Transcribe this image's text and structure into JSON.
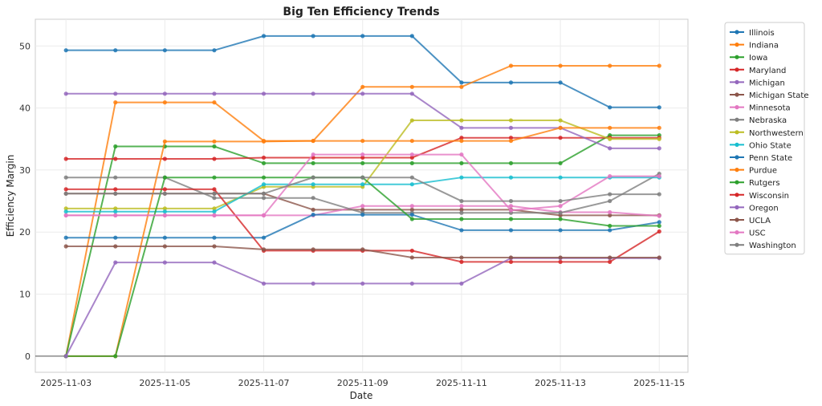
{
  "chart_data": {
    "type": "line",
    "title": "Big Ten Efficiency Trends",
    "xlabel": "Date",
    "ylabel": "Efficiency Margin",
    "ylim": [
      -2.6,
      54.3
    ],
    "yticks": [
      0,
      10,
      20,
      30,
      40,
      50
    ],
    "x": [
      "2025-11-03",
      "2025-11-04",
      "2025-11-05",
      "2025-11-06",
      "2025-11-07",
      "2025-11-08",
      "2025-11-09",
      "2025-11-10",
      "2025-11-11",
      "2025-11-12",
      "2025-11-13",
      "2025-11-14",
      "2025-11-15"
    ],
    "xticks": [
      "2025-11-03",
      "2025-11-05",
      "2025-11-07",
      "2025-11-09",
      "2025-11-11",
      "2025-11-13",
      "2025-11-15"
    ],
    "grid": true,
    "legend_position": "outside-right",
    "series": [
      {
        "name": "Illinois",
        "color": "#1f77b4",
        "values": [
          49.3,
          49.3,
          49.3,
          49.3,
          51.6,
          51.6,
          51.6,
          51.6,
          44.1,
          44.1,
          44.1,
          40.1,
          40.1
        ]
      },
      {
        "name": "Indiana",
        "color": "#ff7f0e",
        "values": [
          0,
          40.9,
          40.9,
          40.9,
          34.7,
          34.7,
          43.4,
          43.4,
          43.4,
          46.8,
          46.8,
          46.8,
          46.8
        ]
      },
      {
        "name": "Iowa",
        "color": "#2ca02c",
        "values": [
          0,
          33.8,
          33.8,
          33.8,
          31.1,
          31.1,
          31.1,
          31.1,
          31.1,
          31.1,
          31.1,
          35.6,
          35.6
        ]
      },
      {
        "name": "Maryland",
        "color": "#d62728",
        "values": [
          31.8,
          31.8,
          31.8,
          31.8,
          32.0,
          32.0,
          32.0,
          32.0,
          35.2,
          35.2,
          35.2,
          35.2,
          35.2
        ]
      },
      {
        "name": "Michigan",
        "color": "#9467bd",
        "values": [
          42.3,
          42.3,
          42.3,
          42.3,
          42.3,
          42.3,
          42.3,
          42.3,
          36.8,
          36.8,
          36.8,
          33.5,
          33.5
        ]
      },
      {
        "name": "Michigan State",
        "color": "#8c564b",
        "values": [
          26.2,
          26.2,
          26.2,
          26.2,
          26.2,
          23.6,
          23.6,
          23.6,
          23.6,
          23.6,
          22.7,
          22.7,
          22.7
        ]
      },
      {
        "name": "Minnesota",
        "color": "#e377c2",
        "values": [
          22.7,
          22.7,
          22.7,
          22.7,
          22.7,
          22.7,
          24.2,
          24.2,
          24.2,
          24.2,
          23.2,
          23.2,
          22.6
        ]
      },
      {
        "name": "Nebraska",
        "color": "#7f7f7f",
        "values": [
          28.8,
          28.8,
          28.8,
          25.5,
          25.5,
          25.5,
          23.1,
          23.1,
          23.1,
          23.1,
          23.1,
          25.0,
          29.4
        ]
      },
      {
        "name": "Northwestern",
        "color": "#bcbd22",
        "values": [
          23.8,
          23.8,
          23.8,
          23.8,
          27.3,
          27.3,
          27.3,
          38.0,
          38.0,
          38.0,
          38.0,
          35.0,
          35.0
        ]
      },
      {
        "name": "Ohio State",
        "color": "#17becf",
        "values": [
          23.3,
          23.3,
          23.3,
          23.3,
          27.7,
          27.7,
          27.7,
          27.7,
          28.8,
          28.8,
          28.8,
          28.8,
          28.8
        ]
      },
      {
        "name": "Penn State",
        "color": "#1f77b4",
        "values": [
          19.1,
          19.1,
          19.1,
          19.1,
          19.1,
          22.8,
          22.8,
          22.8,
          20.3,
          20.3,
          20.3,
          20.3,
          21.6
        ]
      },
      {
        "name": "Purdue",
        "color": "#ff7f0e",
        "values": [
          0,
          0,
          34.6,
          34.6,
          34.6,
          34.7,
          34.7,
          34.7,
          34.7,
          34.7,
          36.8,
          36.8,
          36.8
        ]
      },
      {
        "name": "Rutgers",
        "color": "#2ca02c",
        "values": [
          0,
          0,
          28.8,
          28.8,
          28.8,
          28.8,
          28.8,
          22.1,
          22.1,
          22.1,
          22.1,
          21.0,
          21.0
        ]
      },
      {
        "name": "Wisconsin",
        "color": "#d62728",
        "values": [
          26.9,
          26.9,
          26.9,
          26.9,
          17.0,
          17.0,
          17.0,
          17.0,
          15.2,
          15.2,
          15.2,
          15.2,
          20.1
        ]
      },
      {
        "name": "Oregon",
        "color": "#9467bd",
        "values": [
          0,
          15.1,
          15.1,
          15.1,
          11.7,
          11.7,
          11.7,
          11.7,
          11.7,
          15.8,
          15.8,
          15.8,
          15.8
        ]
      },
      {
        "name": "UCLA",
        "color": "#8c564b",
        "values": [
          17.7,
          17.7,
          17.7,
          17.7,
          17.2,
          17.2,
          17.2,
          15.9,
          15.9,
          15.9,
          15.9,
          15.9,
          15.9
        ]
      },
      {
        "name": "USC",
        "color": "#e377c2",
        "values": [
          22.7,
          22.7,
          22.7,
          22.7,
          22.7,
          32.5,
          32.5,
          32.5,
          32.5,
          23.5,
          24.2,
          29.0,
          29.0
        ]
      },
      {
        "name": "Washington",
        "color": "#7f7f7f",
        "values": [
          26.2,
          26.2,
          26.2,
          26.2,
          26.2,
          28.8,
          28.8,
          28.8,
          25.0,
          25.0,
          25.0,
          26.1,
          26.1
        ]
      }
    ]
  }
}
